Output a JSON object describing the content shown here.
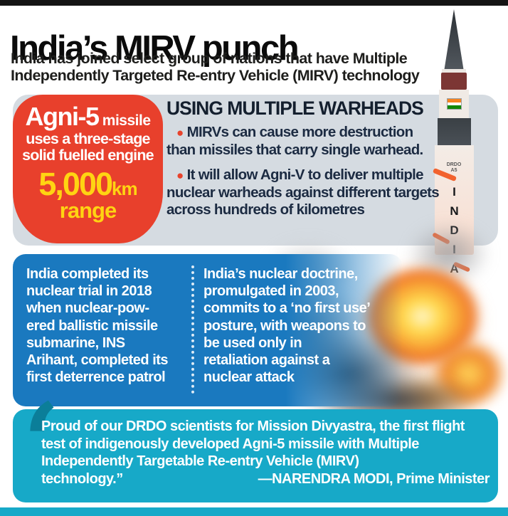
{
  "colors": {
    "accent_red": "#e8402c",
    "accent_yellow": "#ffd412",
    "panel_gray": "#d5dbe1",
    "box_blue": "#1a79bf",
    "box_teal": "#17a9c8",
    "text_navy": "#1c2b42"
  },
  "header": {
    "title": "India’s MIRV punch",
    "subtitle_lines": [
      "India has joined select group of nations that have Multiple",
      "Independently Targeted Re-entry Vehicle (MIRV) technology"
    ]
  },
  "agni_box": {
    "name_strong": "Agni-5",
    "name_rest": " missile",
    "desc_lines": [
      "uses a three-stage",
      "solid fuelled engine"
    ],
    "range_value": "5,000",
    "range_unit": "km",
    "range_word": "range"
  },
  "warheads": {
    "heading": "USING MULTIPLE WARHEADS",
    "bullet_glyph": "●",
    "bullets": [
      "MIRVs can cause more destruction than missiles that carry single warhead.",
      "It will allow Agni-V to deliver multiple nuclear warheads against different targets across hundreds of kilometres"
    ]
  },
  "missile": {
    "marking_line1": "DRDO",
    "marking_line2": "A5",
    "body_text": "INDIA"
  },
  "blue_box": {
    "left_column": {
      "lines": [
        "India completed its",
        "nuclear trial in 2018",
        "when nuclear-pow-",
        "ered ballistic missile",
        "submarine, INS",
        "Arihant, completed its",
        "first deterrence patrol"
      ]
    },
    "right_column": {
      "lines": [
        "India’s nuclear doctrine,",
        "promulgated in 2003,",
        "commits to a ‘no first use’",
        "posture, with weapons to",
        "be used only in",
        "retaliation against a",
        "nuclear attack"
      ]
    }
  },
  "quote": {
    "mark": "‘",
    "body": "Proud of our DRDO scientists for Mission Divyastra, the first flight test of indigenously developed Agni-5 missile with Multiple Independently Targetable Re-entry Vehicle (MIRV)",
    "body_end": "technology.”",
    "attribution": "—NARENDRA MODI, Prime Minister"
  }
}
